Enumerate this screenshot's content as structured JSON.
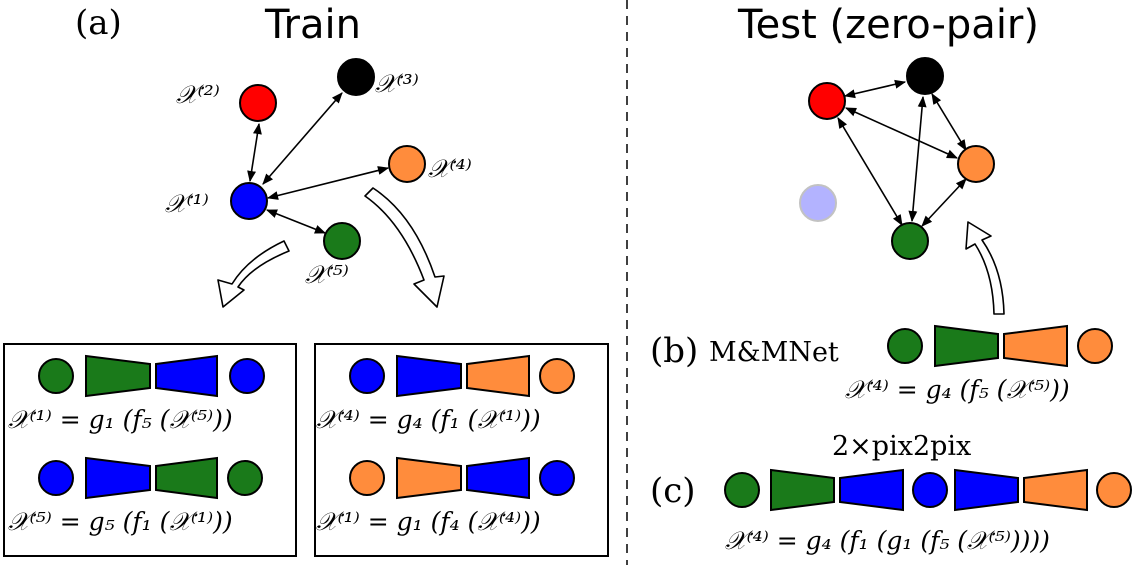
{
  "colors": {
    "modality_1": "#0000ff",
    "modality_2": "#ff0000",
    "modality_3": "#000000",
    "modality_4": "#ff8c3c",
    "modality_5": "#1a7a1a",
    "modality_1_faded": "#b3b3ff"
  },
  "panel_a": {
    "label": "(a)",
    "title": "Train",
    "nodes": {
      "x1": "𝒳⁽¹⁾",
      "x2": "𝒳⁽²⁾",
      "x3": "𝒳⁽³⁾",
      "x4": "𝒳⁽⁴⁾",
      "x5": "𝒳⁽⁵⁾"
    },
    "box_left": {
      "eq_top": "𝒳⁽¹⁾ = g₁ (f₅ (𝒳⁽⁵⁾))",
      "eq_bottom": "𝒳⁽⁵⁾ = g₅ (f₁ (𝒳⁽¹⁾))"
    },
    "box_right": {
      "eq_top": "𝒳⁽⁴⁾ = g₄ (f₁ (𝒳⁽¹⁾))",
      "eq_bottom": "𝒳⁽¹⁾ = g₁ (f₄ (𝒳⁽⁴⁾))"
    }
  },
  "panel_test": {
    "title": "Test (zero-pair)"
  },
  "panel_b": {
    "label": "(b)",
    "method": "M&MNet",
    "equation": "𝒳⁽⁴⁾ = g₄ (f₅ (𝒳⁽⁵⁾))"
  },
  "panel_c": {
    "label": "(c)",
    "method": "2×pix2pix",
    "equation": "𝒳⁽⁴⁾ = g₄ (f₁ (g₁ (f₅ (𝒳⁽⁵⁾))))"
  }
}
